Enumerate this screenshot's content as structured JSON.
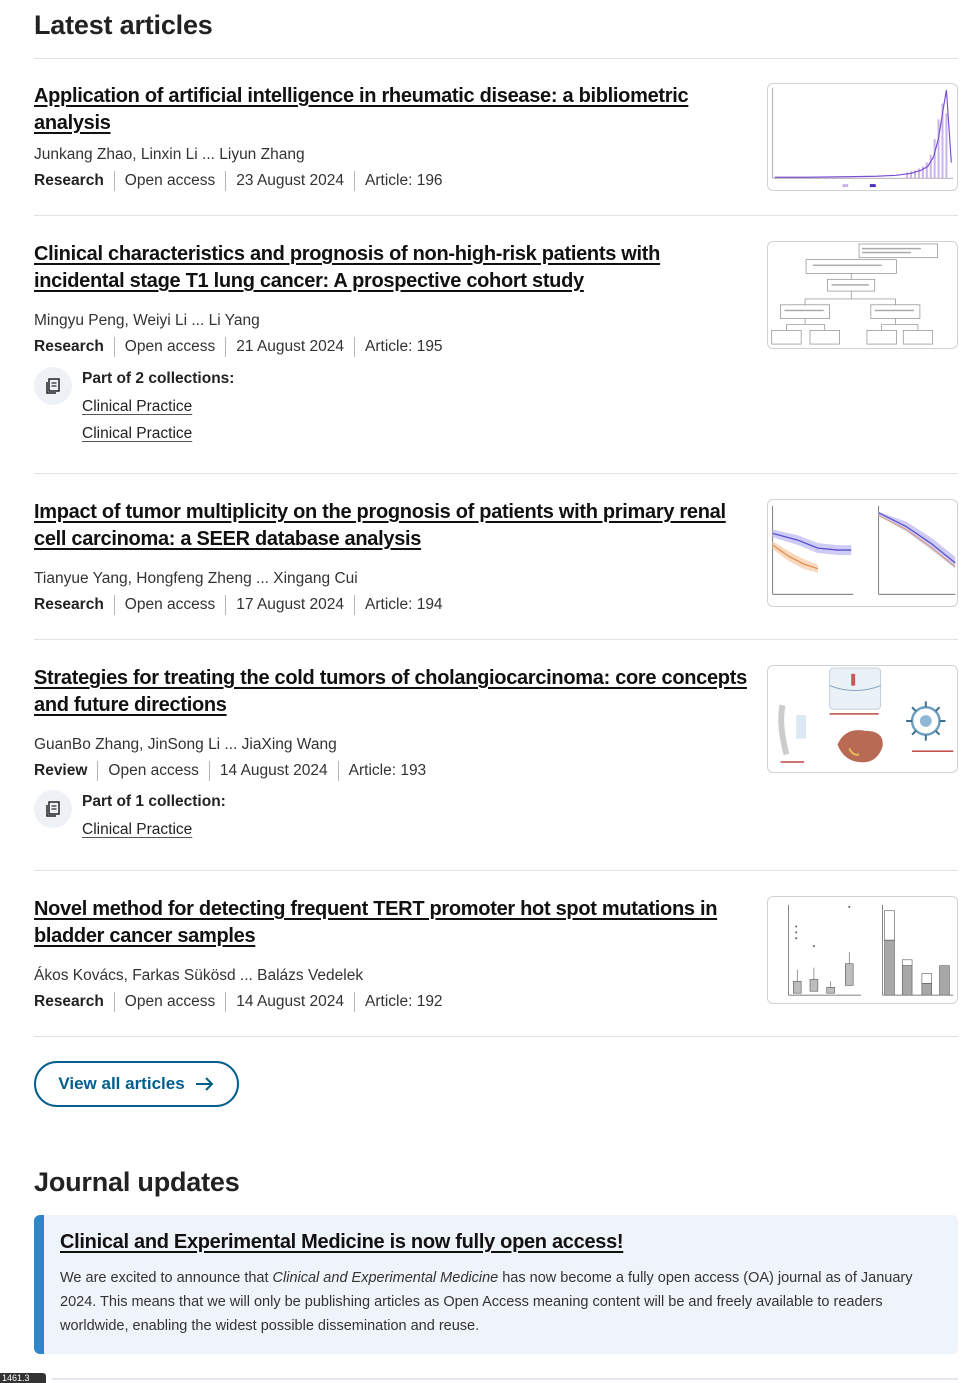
{
  "latest": {
    "heading": "Latest articles",
    "articles": [
      {
        "title": "Application of artificial intelligence in rheumatic disease: a bibliometric analysis",
        "authors": "Junkang Zhao, Linxin Li ... Liyun Zhang",
        "type": "Research",
        "access": "Open access",
        "date": "23 August 2024",
        "article_no": "Article: 196",
        "thumbnail": "bar-trend-chart"
      },
      {
        "title": "Clinical characteristics and prognosis of non-high-risk patients with incidental stage T1 lung cancer: A prospective cohort study",
        "authors": "Mingyu Peng, Weiyi Li ... Li Yang",
        "type": "Research",
        "access": "Open access",
        "date": "21 August 2024",
        "article_no": "Article: 195",
        "thumbnail": "flowchart",
        "collections_label": "Part of 2 collections:",
        "collections": [
          "Clinical Practice",
          "Clinical Practice"
        ]
      },
      {
        "title": "Impact of tumor multiplicity on the prognosis of patients with primary renal cell carcinoma: a SEER database analysis",
        "authors": "Tianyue Yang, Hongfeng Zheng ... Xingang Cui",
        "type": "Research",
        "access": "Open access",
        "date": "17 August 2024",
        "article_no": "Article: 194",
        "thumbnail": "survival-curves"
      },
      {
        "title": "Strategies for treating the cold tumors of cholangiocarcinoma: core concepts and future directions",
        "authors": "GuanBo Zhang, JinSong Li ... JiaXing Wang",
        "type": "Review",
        "access": "Open access",
        "date": "14 August 2024",
        "article_no": "Article: 193",
        "thumbnail": "illustration",
        "collections_label": "Part of 1 collection:",
        "collections": [
          "Clinical Practice"
        ]
      },
      {
        "title": "Novel method for detecting frequent TERT promoter hot spot mutations in bladder cancer samples",
        "authors": "Ákos Kovács, Farkas Sükösd ... Balázs Vedelek",
        "type": "Research",
        "access": "Open access",
        "date": "14 August 2024",
        "article_no": "Article: 192",
        "thumbnail": "box-bar-chart"
      }
    ],
    "view_all_label": "View all articles",
    "view_all_icon": "arrow-right-icon"
  },
  "updates": {
    "heading": "Journal updates",
    "title": "Clinical and Experimental Medicine is now fully open access!",
    "body_pre": "We are excited to announce that ",
    "body_journal": "Clinical and Experimental Medicine",
    "body_post": " has now become a fully open access (OA) journal as of January 2024. This means that we will only be publishing articles as Open Access meaning content will be and freely available to readers worldwide, enabling the widest possible dissemination and reuse."
  },
  "page_chip": "1461.3",
  "colors": {
    "accent": "#025e8d",
    "update_bar": "#2e87c8",
    "update_bg": "#eff4fa"
  }
}
